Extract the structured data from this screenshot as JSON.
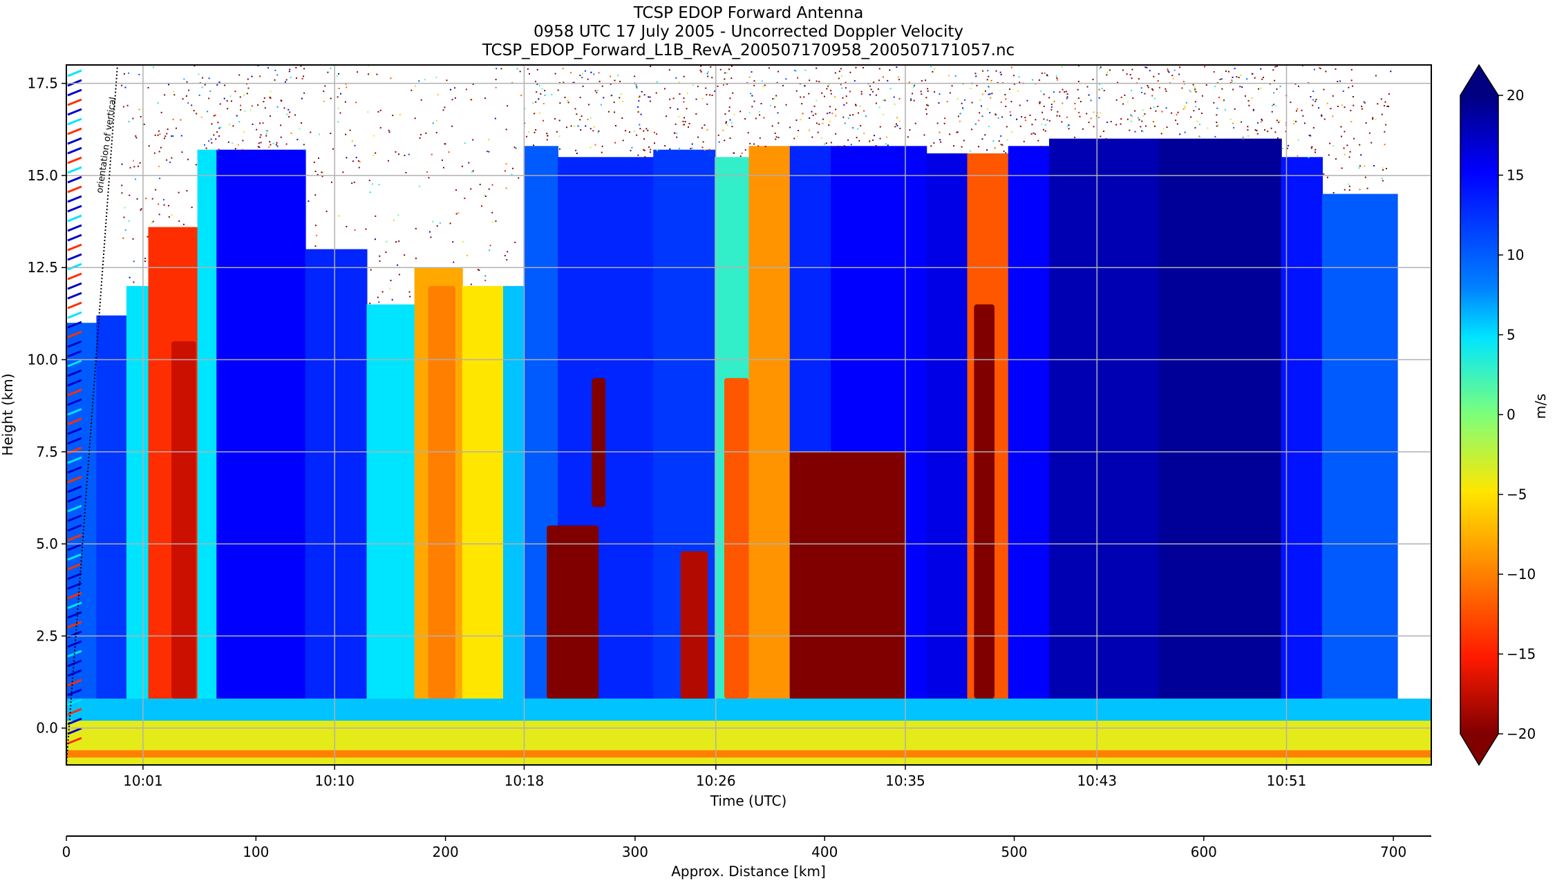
{
  "chart_data": {
    "type": "heatmap",
    "title_lines": [
      "TCSP EDOP Forward Antenna",
      "0958 UTC 17 July 2005 - Uncorrected Doppler Velocity",
      "TCSP_EDOP_Forward_L1B_RevA_200507170958_200507171057.nc"
    ],
    "xlabel": "Time (UTC)",
    "ylabel": "Height (km)",
    "x2label": "Approx. Distance [km]",
    "annotation": "orientation of vertical",
    "xlim_min": [
      9.9,
      60.0
    ],
    "xticks": [
      {
        "label": "10:01",
        "min": 61.4
      },
      {
        "label": "10:10",
        "min": 70.4
      },
      {
        "label": "10:18",
        "min": 79.3
      },
      {
        "label": "10:26",
        "min": 88.3
      },
      {
        "label": "10:35",
        "min": 97.2
      },
      {
        "label": "10:43",
        "min": 106.2
      },
      {
        "label": "10:51",
        "min": 115.1
      }
    ],
    "xlim_minutes": [
      57.8,
      121.9
    ],
    "ylim": [
      -1.0,
      18.0
    ],
    "yticks": [
      0.0,
      2.5,
      5.0,
      7.5,
      10.0,
      12.5,
      15.0,
      17.5
    ],
    "ytick_labels": [
      "0.0",
      "2.5",
      "5.0",
      "7.5",
      "10.0",
      "12.5",
      "15.0",
      "17.5"
    ],
    "x2lim": [
      0,
      720
    ],
    "x2ticks": [
      0,
      100,
      200,
      300,
      400,
      500,
      600,
      700
    ],
    "x2tick_labels": [
      "0",
      "100",
      "200",
      "300",
      "400",
      "500",
      "600",
      "700"
    ],
    "colorbar": {
      "label": "m/s",
      "range": [
        -20,
        20
      ],
      "ticks": [
        20,
        15,
        10,
        5,
        0,
        -5,
        -10,
        -15,
        -20
      ],
      "tick_labels": [
        "20",
        "15",
        "10",
        "5",
        "0",
        "−5",
        "−10",
        "−15",
        "−20"
      ],
      "colormap": "jet_r",
      "colors": [
        "#000080",
        "#0000ff",
        "#0080ff",
        "#00e5ff",
        "#7dff7a",
        "#ffe600",
        "#ff8000",
        "#ff1a00",
        "#800000"
      ]
    },
    "grid": true,
    "velocity_columns": [
      {
        "x0": 0,
        "x1": 22,
        "v": 10,
        "top": 11.0
      },
      {
        "x0": 22,
        "x1": 44,
        "v": 12,
        "top": 11.2
      },
      {
        "x0": 44,
        "x1": 60,
        "v": 5,
        "top": 12.0
      },
      {
        "x0": 60,
        "x1": 96,
        "v": -14,
        "top": 13.6
      },
      {
        "x0": 96,
        "x1": 110,
        "v": 5,
        "top": 15.7
      },
      {
        "x0": 110,
        "x1": 175,
        "v": 15,
        "top": 15.7
      },
      {
        "x0": 175,
        "x1": 220,
        "v": 13,
        "top": 13.0
      },
      {
        "x0": 220,
        "x1": 255,
        "v": 5,
        "top": 11.5
      },
      {
        "x0": 255,
        "x1": 290,
        "v": -8,
        "top": 12.5
      },
      {
        "x0": 290,
        "x1": 320,
        "v": -5,
        "top": 12.0
      },
      {
        "x0": 320,
        "x1": 335,
        "v": 6,
        "top": 12.0
      },
      {
        "x0": 335,
        "x1": 360,
        "v": 10,
        "top": 15.8
      },
      {
        "x0": 360,
        "x1": 430,
        "v": 13,
        "top": 15.5
      },
      {
        "x0": 430,
        "x1": 475,
        "v": 12,
        "top": 15.7
      },
      {
        "x0": 475,
        "x1": 500,
        "v": 3,
        "top": 15.5
      },
      {
        "x0": 500,
        "x1": 530,
        "v": -9,
        "top": 15.8
      },
      {
        "x0": 530,
        "x1": 560,
        "v": 13,
        "top": 15.8
      },
      {
        "x0": 560,
        "x1": 630,
        "v": 15,
        "top": 15.8
      },
      {
        "x0": 630,
        "x1": 660,
        "v": 16,
        "top": 15.6
      },
      {
        "x0": 660,
        "x1": 690,
        "v": -12,
        "top": 15.6
      },
      {
        "x0": 690,
        "x1": 720,
        "v": 15,
        "top": 15.8
      },
      {
        "x0": 720,
        "x1": 800,
        "v": 18,
        "top": 16.0
      },
      {
        "x0": 800,
        "x1": 890,
        "v": 19,
        "top": 16.0
      },
      {
        "x0": 890,
        "x1": 920,
        "v": 14,
        "top": 15.5
      },
      {
        "x0": 920,
        "x1": 975,
        "v": 10,
        "top": 14.5
      }
    ],
    "down_cores": [
      {
        "x0": 77,
        "x1": 95,
        "y0": 0.8,
        "y1": 10.5,
        "v": -17
      },
      {
        "x0": 265,
        "x1": 285,
        "y0": 0.8,
        "y1": 12.0,
        "v": -10
      },
      {
        "x0": 352,
        "x1": 390,
        "y0": 0.8,
        "y1": 5.5,
        "v": -20
      },
      {
        "x0": 385,
        "x1": 395,
        "y0": 6.0,
        "y1": 9.5,
        "v": -20
      },
      {
        "x0": 450,
        "x1": 470,
        "y0": 0.8,
        "y1": 4.8,
        "v": -18
      },
      {
        "x0": 482,
        "x1": 500,
        "y0": 0.8,
        "y1": 9.5,
        "v": -12
      },
      {
        "x0": 530,
        "x1": 615,
        "y0": 0.8,
        "y1": 7.5,
        "v": -20
      },
      {
        "x0": 665,
        "x1": 680,
        "y0": 0.8,
        "y1": 11.5,
        "v": -20
      }
    ],
    "surface_band": {
      "y0": -1.0,
      "y1": 0.8,
      "v": -4
    }
  }
}
